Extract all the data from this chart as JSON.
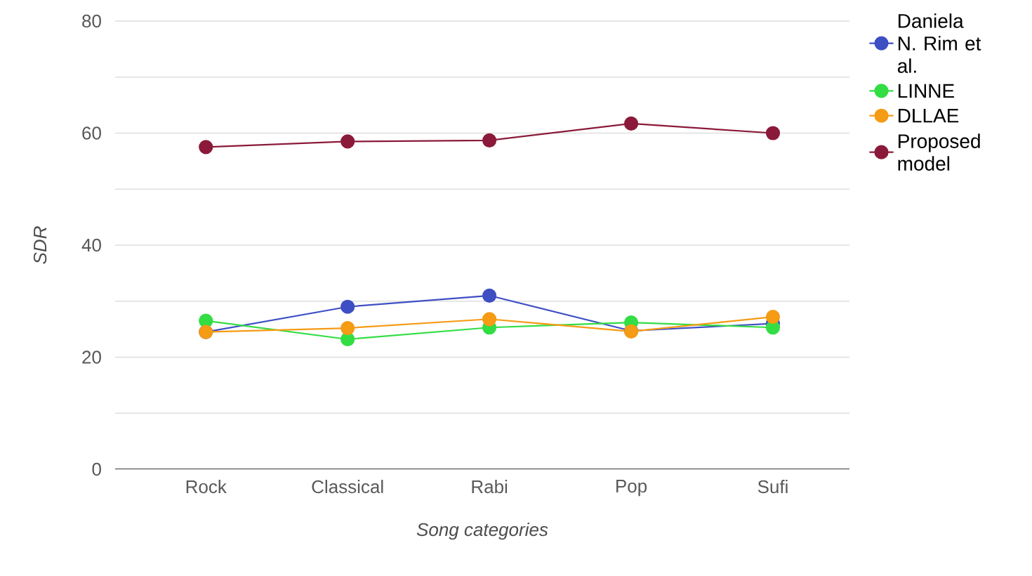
{
  "chart_data": {
    "type": "line",
    "xlabel": "Song categories",
    "ylabel": "SDR",
    "categories": [
      "Rock",
      "Classical",
      "Rabi",
      "Pop",
      "Sufi"
    ],
    "series": [
      {
        "name": "Daniela N. Rim et al.",
        "color": "#3e4fc4",
        "values": [
          24.5,
          29,
          31,
          24.7,
          26
        ]
      },
      {
        "name": "LINNE",
        "color": "#33dd44",
        "values": [
          26.5,
          23.2,
          25.3,
          26.2,
          25.3
        ]
      },
      {
        "name": "DLLAE",
        "color": "#f59b14",
        "values": [
          24.5,
          25.2,
          26.8,
          24.6,
          27.2
        ]
      },
      {
        "name": "Proposed model",
        "color": "#8b1a3a",
        "values": [
          57.5,
          58.5,
          58.7,
          61.7,
          60
        ]
      }
    ],
    "ylim": [
      0,
      80
    ],
    "yticks": [
      0,
      {
        "value": 10,
        "label": null
      },
      20,
      {
        "value": 30,
        "label": null
      },
      40,
      {
        "value": 50,
        "label": null
      },
      60,
      {
        "value": 70,
        "label": null
      },
      80
    ],
    "grid": "y",
    "legend": "top right",
    "marker": "circle",
    "line_style": "solid"
  }
}
